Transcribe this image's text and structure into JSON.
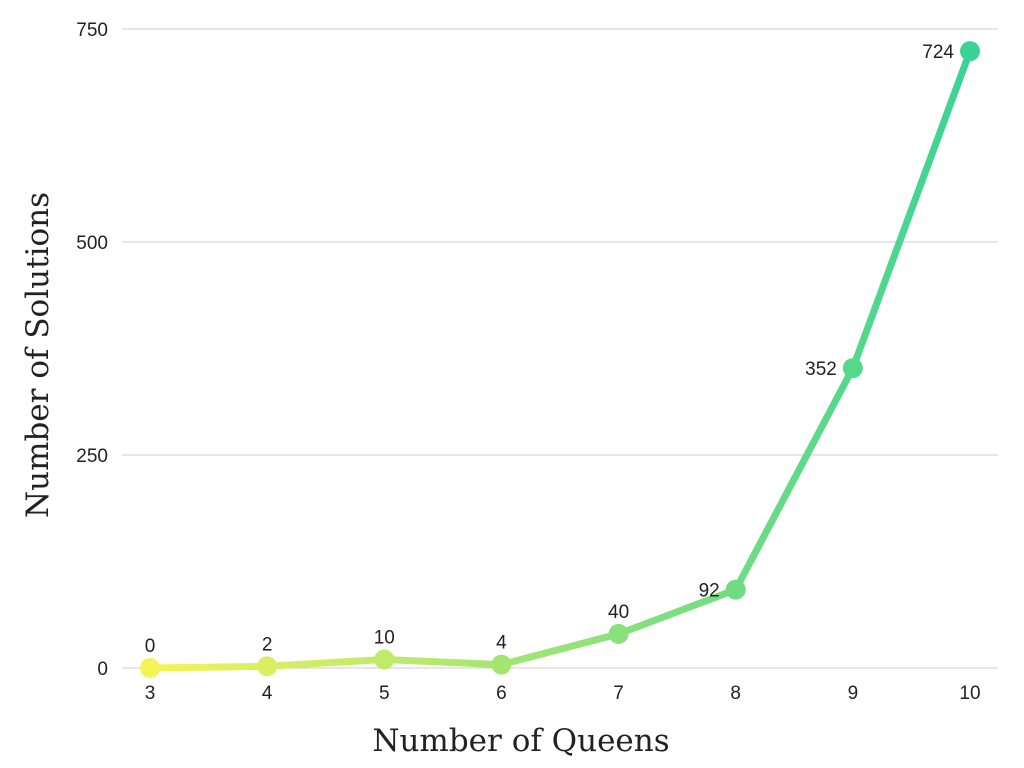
{
  "chart_data": {
    "type": "line",
    "title": "",
    "xlabel": "Number of Queens",
    "ylabel": "Number of Solutions",
    "x": [
      "3",
      "4",
      "5",
      "6",
      "7",
      "8",
      "9",
      "10"
    ],
    "series": [
      {
        "values": [
          0,
          2,
          10,
          4,
          40,
          92,
          352,
          724
        ],
        "data_labels": [
          "0",
          "2",
          "10",
          "4",
          "40",
          "92",
          "352",
          "724"
        ]
      }
    ],
    "ylim": [
      0,
      750
    ],
    "yticks": [
      "0",
      "250",
      "500",
      "750"
    ],
    "grid": true,
    "legend": "none",
    "colors": {
      "gradient_start": "#f4f458",
      "gradient_end": "#3ad395",
      "grid": "#cccccc",
      "text": "#222222"
    }
  }
}
